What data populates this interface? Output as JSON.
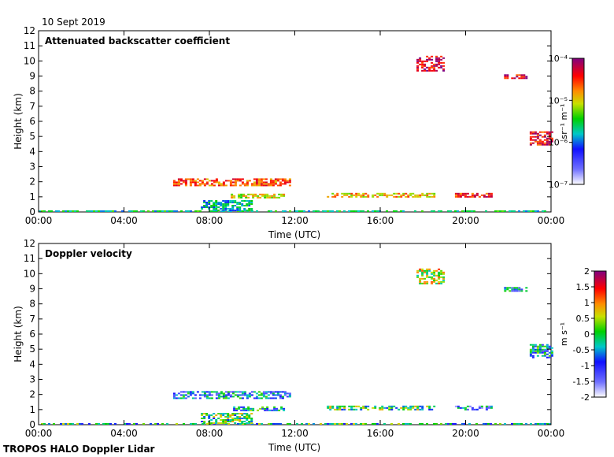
{
  "date_label": "10 Sept 2019",
  "footer": "TROPOS HALO Doppler Lidar",
  "chart_data": [
    {
      "type": "heatmap",
      "title": "Attenuated backscatter coefficient",
      "xlabel": "Time (UTC)",
      "ylabel": "Height (km)",
      "x_ticks": [
        "00:00",
        "04:00",
        "08:00",
        "12:00",
        "16:00",
        "20:00",
        "00:00"
      ],
      "xlim_hours": [
        0,
        24
      ],
      "ylim": [
        0,
        12
      ],
      "y_ticks": [
        0,
        1,
        2,
        3,
        4,
        5,
        6,
        7,
        8,
        9,
        10,
        11,
        12
      ],
      "colorbar": {
        "label": "sr⁻¹ m⁻¹",
        "scale": "log",
        "range": [
          1e-07,
          0.0001
        ],
        "ticks": [
          "10⁻⁷",
          "10⁻⁶",
          "10⁻⁵",
          "10⁻⁴"
        ]
      },
      "features": [
        {
          "t0": 0.0,
          "t1": 24.0,
          "h0": 0.0,
          "h1": 0.1,
          "level": 0.45
        },
        {
          "t0": 7.6,
          "t1": 10.0,
          "h0": 0.05,
          "h1": 0.7,
          "level": 0.42
        },
        {
          "t0": 6.3,
          "t1": 11.8,
          "h0": 1.7,
          "h1": 2.2,
          "level": 0.8
        },
        {
          "t0": 9.0,
          "t1": 11.5,
          "h0": 0.9,
          "h1": 1.2,
          "level": 0.65
        },
        {
          "t0": 13.5,
          "t1": 18.5,
          "h0": 0.95,
          "h1": 1.2,
          "level": 0.7
        },
        {
          "t0": 19.5,
          "t1": 21.2,
          "h0": 0.95,
          "h1": 1.2,
          "level": 0.85
        },
        {
          "t0": 17.7,
          "t1": 19.0,
          "h0": 9.3,
          "h1": 10.3,
          "level": 0.9
        },
        {
          "t0": 21.8,
          "t1": 22.8,
          "h0": 8.8,
          "h1": 9.1,
          "level": 0.9
        },
        {
          "t0": 23.0,
          "t1": 24.0,
          "h0": 4.4,
          "h1": 5.3,
          "level": 0.88
        }
      ]
    },
    {
      "type": "heatmap",
      "title": "Doppler velocity",
      "xlabel": "Time (UTC)",
      "ylabel": "Height (km)",
      "x_ticks": [
        "00:00",
        "04:00",
        "08:00",
        "12:00",
        "16:00",
        "20:00",
        "00:00"
      ],
      "xlim_hours": [
        0,
        24
      ],
      "ylim": [
        0,
        12
      ],
      "y_ticks": [
        0,
        1,
        2,
        3,
        4,
        5,
        6,
        7,
        8,
        9,
        10,
        11,
        12
      ],
      "colorbar": {
        "label": "m s⁻¹",
        "scale": "linear",
        "range": [
          -2,
          2
        ],
        "ticks": [
          "2",
          "1.5",
          "1",
          "0.5",
          "0",
          "-0.5",
          "-1",
          "-1.5",
          "-2"
        ]
      },
      "features": [
        {
          "t0": 0.0,
          "t1": 24.0,
          "h0": 0.0,
          "h1": 0.1,
          "level": 0.45
        },
        {
          "t0": 7.6,
          "t1": 10.0,
          "h0": 0.05,
          "h1": 0.7,
          "level": 0.5
        },
        {
          "t0": 6.3,
          "t1": 11.8,
          "h0": 1.7,
          "h1": 2.2,
          "level": 0.35
        },
        {
          "t0": 9.0,
          "t1": 11.5,
          "h0": 0.9,
          "h1": 1.2,
          "level": 0.4
        },
        {
          "t0": 13.5,
          "t1": 18.5,
          "h0": 0.95,
          "h1": 1.2,
          "level": 0.5
        },
        {
          "t0": 19.5,
          "t1": 21.2,
          "h0": 0.95,
          "h1": 1.2,
          "level": 0.3
        },
        {
          "t0": 17.7,
          "t1": 19.0,
          "h0": 9.3,
          "h1": 10.3,
          "level": 0.6
        },
        {
          "t0": 21.8,
          "t1": 22.8,
          "h0": 8.8,
          "h1": 9.1,
          "level": 0.35
        },
        {
          "t0": 23.0,
          "t1": 24.0,
          "h0": 4.4,
          "h1": 5.3,
          "level": 0.4
        }
      ]
    }
  ]
}
